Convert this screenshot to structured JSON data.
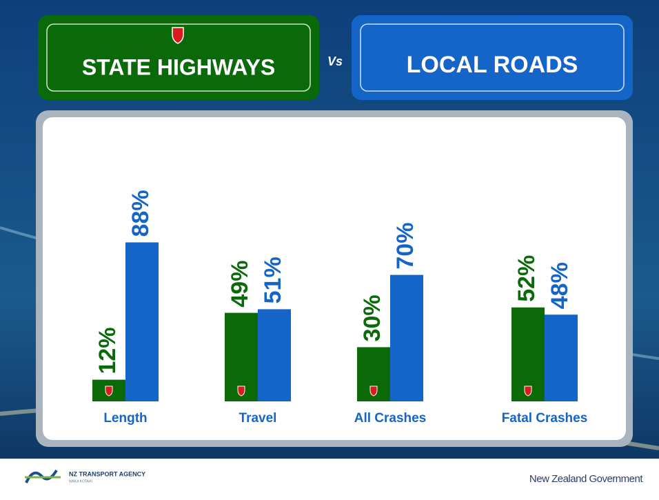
{
  "chart_data": {
    "type": "bar",
    "vs_label": "Vs",
    "categories": [
      "Length",
      "Travel",
      "All Crashes",
      "Fatal Crashes"
    ],
    "series": [
      {
        "name": "STATE HIGHWAYS",
        "color": "#0a6a0a",
        "values": [
          12,
          49,
          30,
          52
        ],
        "value_labels": [
          "12%",
          "49%",
          "30%",
          "52%"
        ]
      },
      {
        "name": "LOCAL ROADS",
        "color": "#1565c8",
        "values": [
          88,
          51,
          70,
          48
        ],
        "value_labels": [
          "88%",
          "51%",
          "70%",
          "48%"
        ]
      }
    ],
    "ylim": [
      0,
      100
    ]
  },
  "footer": {
    "agency": "NZ TRANSPORT AGENCY",
    "agency_sub": "WAKA KOTAHI",
    "government": "New Zealand Government"
  }
}
